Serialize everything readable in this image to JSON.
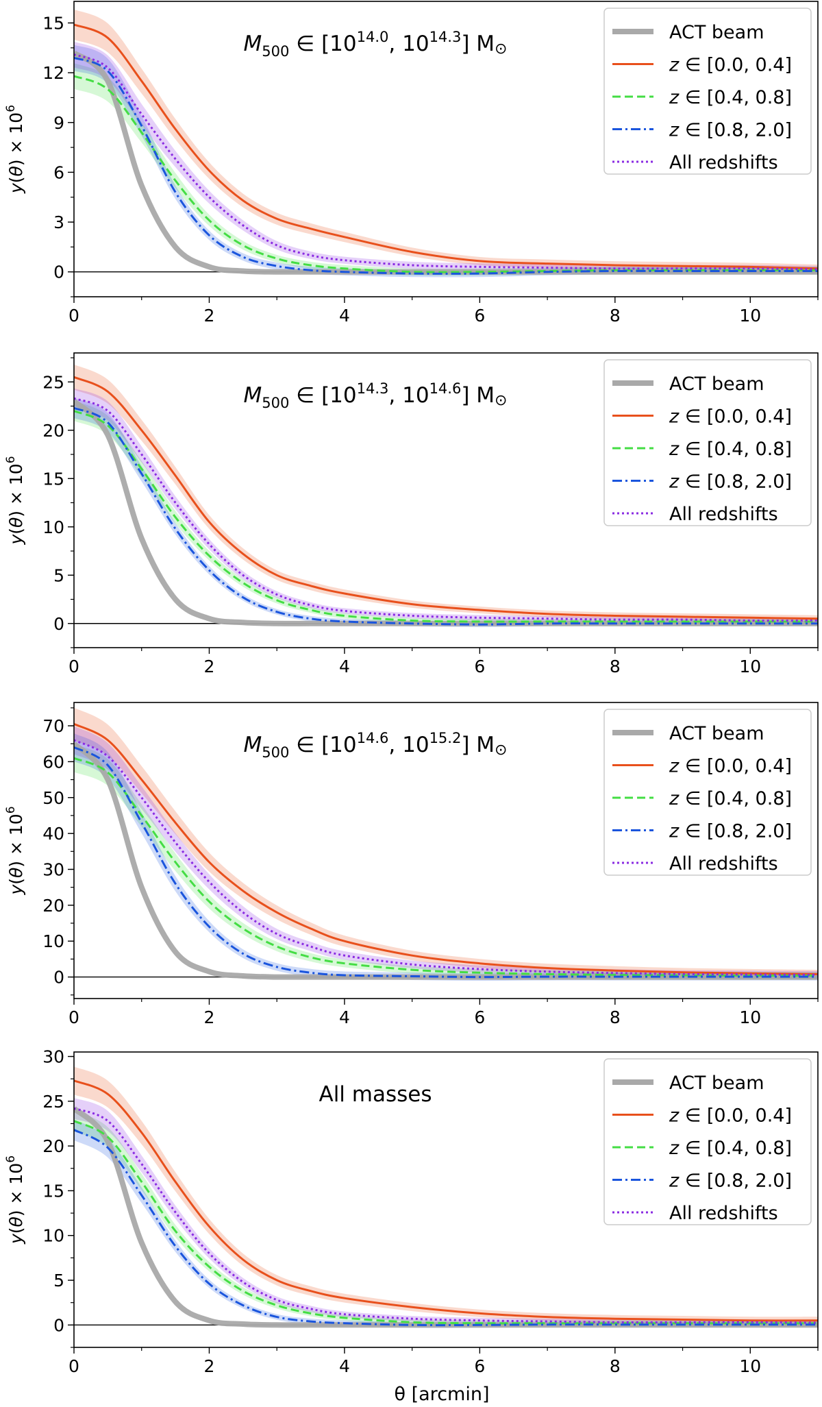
{
  "figure": {
    "xlabel": "θ [arcmin]",
    "ylabel_main": "y(θ) × 10",
    "ylabel_exp": "6"
  },
  "legend": [
    {
      "key": "beam",
      "label": "ACT beam"
    },
    {
      "key": "z1",
      "label": "z ∈ [0.0, 0.4]"
    },
    {
      "key": "z2",
      "label": "z ∈ [0.4, 0.8]"
    },
    {
      "key": "z3",
      "label": "z ∈ [0.8, 2.0]"
    },
    {
      "key": "all",
      "label": "All redshifts"
    }
  ],
  "colors": {
    "beam": "#a9a9a9",
    "z1": "#e8501c",
    "z2": "#44dd44",
    "z3": "#1a55dd",
    "all": "#8a2be2",
    "axis": "#000000"
  },
  "chart_data": [
    {
      "type": "line",
      "panel_title": {
        "prefix": "M",
        "sub": "500",
        "mid1": " ∈ [10",
        "sup1": "14.0",
        "mid2": ", 10",
        "sup2": "14.3",
        "suffix": "] M",
        "sun": "⊙"
      },
      "xlim": [
        0,
        11
      ],
      "ylim": [
        -1.5,
        16.3
      ],
      "xticks": [
        0,
        2,
        4,
        6,
        8,
        10
      ],
      "yticks": [
        0,
        3,
        6,
        9,
        12,
        15
      ],
      "x": [
        0,
        0.5,
        1,
        1.5,
        2,
        2.5,
        3,
        3.5,
        4,
        5,
        6,
        7,
        8,
        9,
        10,
        11
      ],
      "series": [
        {
          "name": "ACT beam",
          "key": "beam",
          "band": 0,
          "values": [
            13.2,
            11.5,
            5.2,
            1.5,
            0.3,
            0.05,
            0,
            0,
            0,
            0,
            0,
            0,
            0,
            0,
            0,
            0
          ]
        },
        {
          "name": "z ∈ [0.0, 0.4]",
          "key": "z1",
          "band": 0.7,
          "values": [
            14.9,
            14.1,
            11.5,
            8.6,
            6.1,
            4.3,
            3.2,
            2.6,
            2.1,
            1.2,
            0.65,
            0.5,
            0.4,
            0.35,
            0.3,
            0.2
          ]
        },
        {
          "name": "z ∈ [0.4, 0.8]",
          "key": "z2",
          "band": 0.6,
          "values": [
            11.8,
            11.0,
            8.4,
            5.5,
            3.1,
            1.6,
            0.8,
            0.4,
            0.2,
            0.0,
            0.0,
            0.05,
            0.1,
            0.1,
            0.1,
            0.1
          ]
        },
        {
          "name": "z ∈ [0.8, 2.0]",
          "key": "z3",
          "band": 0.6,
          "values": [
            12.9,
            12.1,
            8.8,
            4.8,
            2.2,
            0.9,
            0.35,
            0.1,
            0.0,
            -0.1,
            -0.1,
            0.0,
            0.05,
            0.05,
            0.05,
            0.05
          ]
        },
        {
          "name": "All redshifts",
          "key": "all",
          "band": 0.6,
          "values": [
            13.1,
            12.3,
            9.5,
            6.8,
            4.5,
            2.8,
            1.6,
            1.0,
            0.7,
            0.4,
            0.3,
            0.25,
            0.2,
            0.2,
            0.2,
            0.15
          ]
        }
      ]
    },
    {
      "type": "line",
      "panel_title": {
        "prefix": "M",
        "sub": "500",
        "mid1": " ∈ [10",
        "sup1": "14.3",
        "mid2": ", 10",
        "sup2": "14.6",
        "suffix": "] M",
        "sun": "⊙"
      },
      "xlim": [
        0,
        11
      ],
      "ylim": [
        -2.5,
        28
      ],
      "xticks": [
        0,
        2,
        4,
        6,
        8,
        10
      ],
      "yticks": [
        0,
        5,
        10,
        15,
        20,
        25
      ],
      "x": [
        0,
        0.5,
        1,
        1.5,
        2,
        2.5,
        3,
        3.5,
        4,
        5,
        6,
        7,
        8,
        9,
        10,
        11
      ],
      "series": [
        {
          "name": "ACT beam",
          "key": "beam",
          "band": 0,
          "values": [
            23.0,
            19.5,
            8.8,
            2.5,
            0.5,
            0.1,
            0,
            0,
            0,
            0,
            0,
            0,
            0,
            0,
            0,
            0
          ]
        },
        {
          "name": "z ∈ [0.0, 0.4]",
          "key": "z1",
          "band": 1.0,
          "values": [
            25.5,
            24.0,
            20.0,
            15.3,
            10.5,
            7.2,
            5.0,
            3.9,
            3.1,
            2.0,
            1.4,
            1.0,
            0.8,
            0.7,
            0.6,
            0.5
          ]
        },
        {
          "name": "z ∈ [0.4, 0.8]",
          "key": "z2",
          "band": 0.8,
          "values": [
            22.0,
            20.5,
            16.0,
            11.0,
            7.0,
            4.2,
            2.4,
            1.4,
            0.8,
            0.3,
            0.2,
            0.2,
            0.2,
            0.2,
            0.2,
            0.2
          ]
        },
        {
          "name": "z ∈ [0.8, 2.0]",
          "key": "z3",
          "band": 0.8,
          "values": [
            22.3,
            20.8,
            15.5,
            9.8,
            5.5,
            2.7,
            1.2,
            0.5,
            0.2,
            0.0,
            -0.1,
            0.0,
            0.0,
            0.0,
            0.0,
            0.0
          ]
        },
        {
          "name": "All redshifts",
          "key": "all",
          "band": 0.8,
          "values": [
            23.3,
            22.0,
            17.5,
            12.5,
            8.2,
            5.0,
            3.0,
            1.9,
            1.3,
            0.8,
            0.6,
            0.5,
            0.4,
            0.4,
            0.3,
            0.3
          ]
        }
      ]
    },
    {
      "type": "line",
      "panel_title": {
        "prefix": "M",
        "sub": "500",
        "mid1": " ∈ [10",
        "sup1": "14.6",
        "mid2": ", 10",
        "sup2": "15.2",
        "suffix": "] M",
        "sun": "⊙"
      },
      "xlim": [
        0,
        11
      ],
      "ylim": [
        -6,
        76.5
      ],
      "xticks": [
        0,
        2,
        4,
        6,
        8,
        10
      ],
      "yticks": [
        0,
        10,
        20,
        30,
        40,
        50,
        60,
        70
      ],
      "x": [
        0,
        0.5,
        1,
        1.5,
        2,
        2.5,
        3,
        3.5,
        4,
        5,
        6,
        7,
        8,
        9,
        10,
        11
      ],
      "series": [
        {
          "name": "ACT beam",
          "key": "beam",
          "band": 0,
          "values": [
            65.0,
            55.0,
            25.0,
            7.0,
            1.5,
            0.3,
            0,
            0,
            0,
            0,
            0,
            0,
            0,
            0,
            0,
            0
          ]
        },
        {
          "name": "z ∈ [0.0, 0.4]",
          "key": "z1",
          "band": 3.5,
          "values": [
            70.5,
            66.0,
            55.0,
            43.0,
            32.0,
            24.0,
            18.0,
            13.5,
            10.0,
            6.0,
            3.8,
            2.5,
            1.8,
            1.3,
            1.0,
            0.8
          ]
        },
        {
          "name": "z ∈ [0.4, 0.8]",
          "key": "z2",
          "band": 3.0,
          "values": [
            61.0,
            57.0,
            45.0,
            32.0,
            21.0,
            13.5,
            8.5,
            5.5,
            3.8,
            2.0,
            1.2,
            0.8,
            0.6,
            0.5,
            0.4,
            0.4
          ]
        },
        {
          "name": "z ∈ [0.8, 2.0]",
          "key": "z3",
          "band": 3.0,
          "values": [
            64.0,
            59.0,
            43.0,
            26.0,
            14.0,
            6.5,
            2.8,
            1.2,
            0.5,
            0.2,
            0.0,
            0.1,
            0.1,
            0.1,
            0.1,
            0.1
          ]
        },
        {
          "name": "All redshifts",
          "key": "all",
          "band": 3.0,
          "values": [
            66.0,
            61.5,
            50.0,
            37.5,
            26.5,
            18.0,
            12.0,
            8.5,
            6.0,
            3.5,
            2.2,
            1.5,
            1.1,
            0.8,
            0.7,
            0.6
          ]
        }
      ]
    },
    {
      "type": "line",
      "panel_title": {
        "text": "All masses"
      },
      "xlim": [
        0,
        11
      ],
      "ylim": [
        -2.5,
        30.5
      ],
      "xticks": [
        0,
        2,
        4,
        6,
        8,
        10
      ],
      "yticks": [
        0,
        5,
        10,
        15,
        20,
        25,
        30
      ],
      "x": [
        0,
        0.5,
        1,
        1.5,
        2,
        2.5,
        3,
        3.5,
        4,
        5,
        6,
        7,
        8,
        9,
        10,
        11
      ],
      "series": [
        {
          "name": "ACT beam",
          "key": "beam",
          "band": 0,
          "values": [
            24.2,
            20.5,
            9.2,
            2.6,
            0.5,
            0.1,
            0,
            0,
            0,
            0,
            0,
            0,
            0,
            0,
            0,
            0
          ]
        },
        {
          "name": "z ∈ [0.0, 0.4]",
          "key": "z1",
          "band": 1.2,
          "values": [
            27.3,
            25.8,
            21.5,
            16.0,
            11.0,
            7.3,
            5.0,
            3.8,
            3.0,
            2.0,
            1.3,
            0.9,
            0.7,
            0.6,
            0.5,
            0.5
          ]
        },
        {
          "name": "z ∈ [0.4, 0.8]",
          "key": "z2",
          "band": 0.9,
          "values": [
            22.8,
            21.0,
            16.0,
            10.5,
            6.5,
            3.8,
            2.2,
            1.3,
            0.8,
            0.3,
            0.2,
            0.2,
            0.2,
            0.2,
            0.2,
            0.2
          ]
        },
        {
          "name": "z ∈ [0.8, 2.0]",
          "key": "z3",
          "band": 0.9,
          "values": [
            21.8,
            19.8,
            14.5,
            8.8,
            4.6,
            2.2,
            0.9,
            0.4,
            0.2,
            0.0,
            0.0,
            0.05,
            0.05,
            0.05,
            0.05,
            0.05
          ]
        },
        {
          "name": "All redshifts",
          "key": "all",
          "band": 0.9,
          "values": [
            24.2,
            22.8,
            18.0,
            12.6,
            8.0,
            4.8,
            2.8,
            1.8,
            1.2,
            0.7,
            0.5,
            0.4,
            0.3,
            0.3,
            0.3,
            0.25
          ]
        }
      ]
    }
  ]
}
